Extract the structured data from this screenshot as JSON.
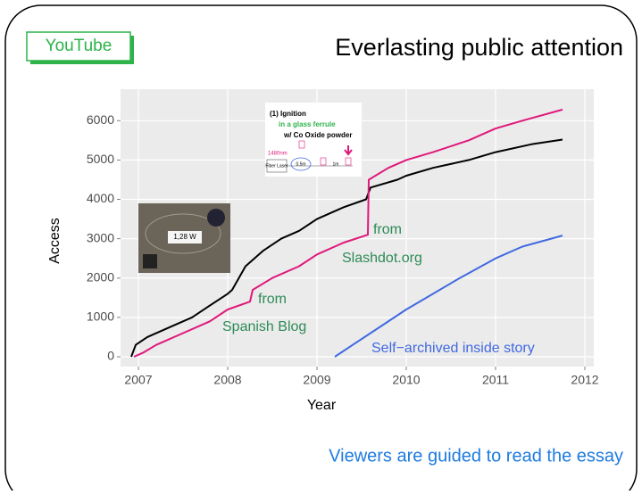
{
  "header": {
    "badge": "YouTube",
    "title": "Everlasting public attention"
  },
  "footer": "Viewers are guided to read the essay",
  "chart_data": {
    "type": "line",
    "x_label": "Year",
    "y_label": "Access",
    "xlim": [
      2006.8,
      2012.1
    ],
    "ylim": [
      -250,
      6800
    ],
    "xticks": [
      2007,
      2008,
      2009,
      2010,
      2011,
      2012
    ],
    "yticks": [
      0,
      1000,
      2000,
      3000,
      4000,
      5000,
      6000
    ],
    "grid": true,
    "series": [
      {
        "color": "#000000",
        "x": [
          2006.92,
          2006.97,
          2007.1,
          2007.4,
          2007.6,
          2007.8,
          2008.0,
          2008.05,
          2008.2,
          2008.4,
          2008.6,
          2008.8,
          2009.0,
          2009.3,
          2009.55,
          2009.6,
          2009.9,
          2010.0,
          2010.3,
          2010.7,
          2011.0,
          2011.4,
          2011.75
        ],
        "values": [
          0,
          300,
          500,
          800,
          1000,
          1300,
          1600,
          1700,
          2300,
          2700,
          3000,
          3200,
          3500,
          3800,
          4000,
          4300,
          4500,
          4600,
          4800,
          5000,
          5200,
          5400,
          5520
        ]
      },
      {
        "color": "#e0187a",
        "x": [
          2006.95,
          2007.05,
          2007.2,
          2007.5,
          2007.8,
          2008.0,
          2008.25,
          2008.28,
          2008.5,
          2008.8,
          2009.0,
          2009.3,
          2009.57,
          2009.58,
          2009.8,
          2010.0,
          2010.3,
          2010.7,
          2011.0,
          2011.3,
          2011.75
        ],
        "values": [
          0,
          100,
          300,
          600,
          900,
          1200,
          1400,
          1700,
          2000,
          2300,
          2600,
          2900,
          3100,
          4500,
          4800,
          5000,
          5200,
          5500,
          5800,
          6000,
          6280
        ]
      },
      {
        "color": "#4169e1",
        "x": [
          2009.2,
          2009.4,
          2009.6,
          2010.0,
          2010.3,
          2010.6,
          2011.0,
          2011.3,
          2011.75
        ],
        "values": [
          0,
          300,
          600,
          1200,
          1600,
          2000,
          2500,
          2800,
          3080
        ]
      }
    ],
    "annotations": [
      "from",
      "Slashdot.org",
      "from",
      "Spanish Blog",
      "Self−archived inside story"
    ],
    "inset": {
      "photo_label": "1,28 W",
      "diagram": [
        "(1) Ignition",
        "in a glass ferrule",
        "w/ Co Oxide powder",
        "1480nm",
        "Fiber Laser",
        "0.5m",
        "1m"
      ]
    }
  }
}
